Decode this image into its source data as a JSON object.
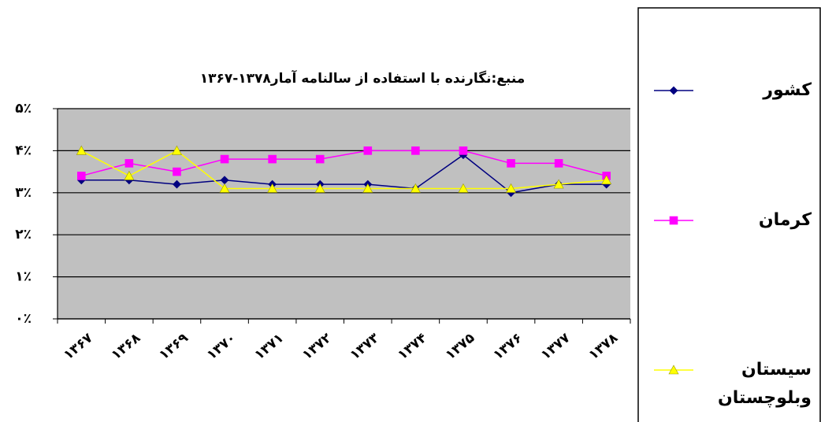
{
  "chart_data": {
    "type": "line",
    "title": "منبع:نگارنده با استفاده از سالنامه آمار۱۳۷۸-۱۳۶۷",
    "categories": [
      "۱۳۶۷",
      "۱۳۶۸",
      "۱۳۶۹",
      "۱۳۷۰",
      "۱۳۷۱",
      "۱۳۷۲",
      "۱۳۷۳",
      "۱۳۷۴",
      "۱۳۷۵",
      "۱۳۷۶",
      "۱۳۷۷",
      "۱۳۷۸"
    ],
    "series": [
      {
        "name": "کشور",
        "color": "#000080",
        "marker": "diamond",
        "values": [
          3.3,
          3.3,
          3.2,
          3.3,
          3.2,
          3.2,
          3.2,
          3.1,
          3.9,
          3.0,
          3.2,
          3.2
        ]
      },
      {
        "name": "کرمان",
        "color": "#ff00ff",
        "marker": "square",
        "values": [
          3.4,
          3.7,
          3.5,
          3.8,
          3.8,
          3.8,
          4.0,
          4.0,
          4.0,
          3.7,
          3.7,
          3.4
        ]
      },
      {
        "name": "سیستان وبلوچستان",
        "color": "#ffff00",
        "marker": "triangle",
        "values": [
          4.0,
          3.4,
          4.0,
          3.1,
          3.1,
          3.1,
          3.1,
          3.1,
          3.1,
          3.1,
          3.2,
          3.3
        ]
      }
    ],
    "ylim": [
      0,
      5
    ],
    "yticks": [
      {
        "value": 0,
        "label": "۰٪"
      },
      {
        "value": 1,
        "label": "۱٪"
      },
      {
        "value": 2,
        "label": "۲٪"
      },
      {
        "value": 3,
        "label": "۳٪"
      },
      {
        "value": 4,
        "label": "۴٪"
      },
      {
        "value": 5,
        "label": "۵٪"
      }
    ],
    "grid": true,
    "legend": "right",
    "plot_background": "#c0c0c0"
  }
}
